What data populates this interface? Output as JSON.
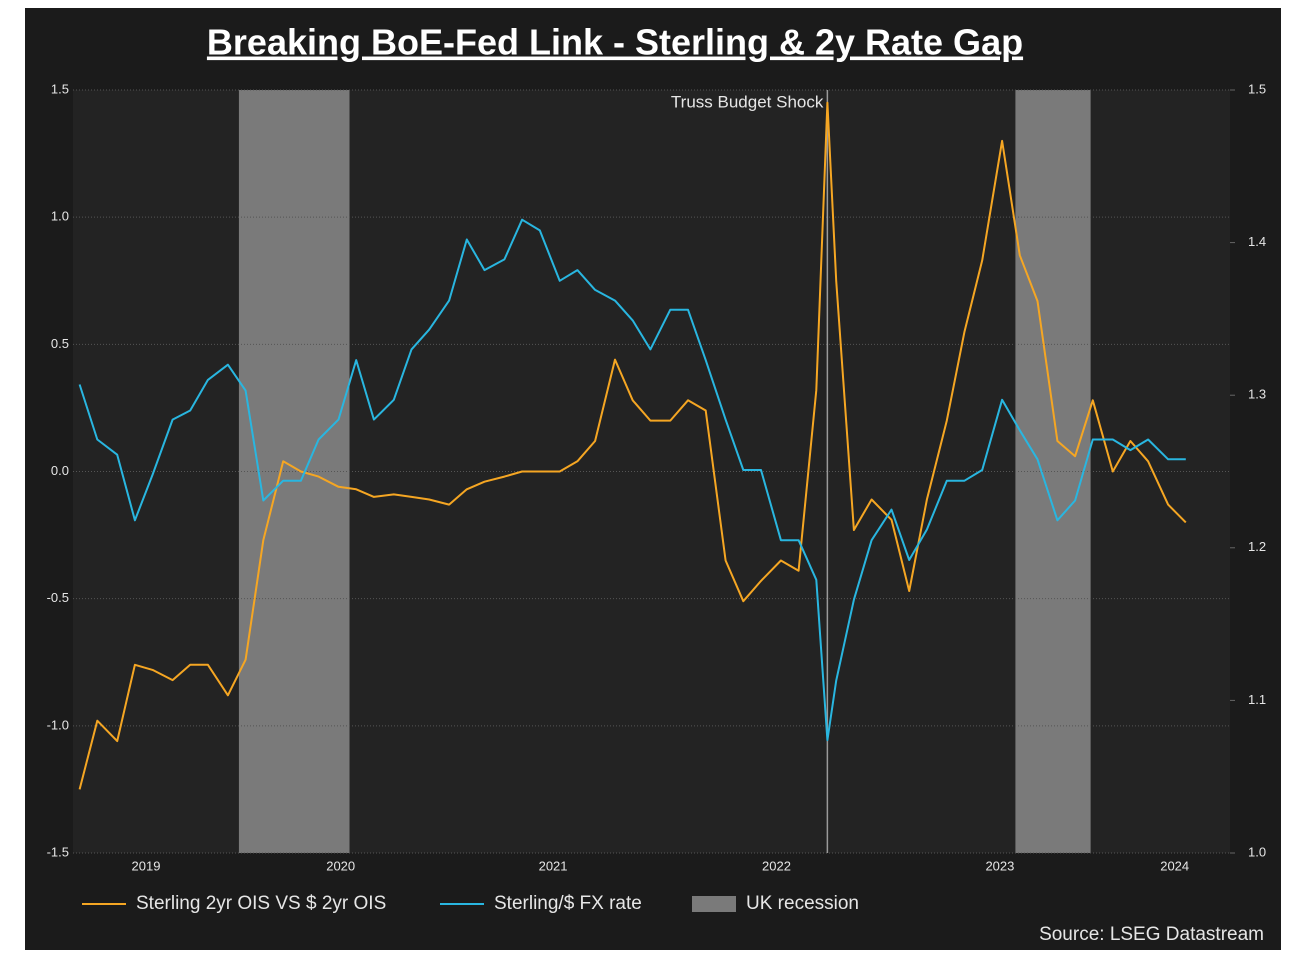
{
  "chart_data": {
    "type": "line",
    "title": "Breaking BoE-Fed Link - Sterling & 2y Rate Gap",
    "source": "Source: LSEG Datastream",
    "annotation": {
      "text": "Truss Budget Shock",
      "x": 2022.68
    },
    "xlim": [
      2019.27,
      2024.5
    ],
    "xticks": [
      {
        "value": 2019.6,
        "label": "2019"
      },
      {
        "value": 2020.48,
        "label": "2020"
      },
      {
        "value": 2021.44,
        "label": "2021"
      },
      {
        "value": 2022.45,
        "label": "2022"
      },
      {
        "value": 2023.46,
        "label": "2023"
      },
      {
        "value": 2024.25,
        "label": "2024"
      }
    ],
    "ylim": [
      -1.5,
      1.5
    ],
    "yticks": [
      {
        "value": -1.5,
        "label": "-1.5"
      },
      {
        "value": -1,
        "label": "-1.0"
      },
      {
        "value": -0.5,
        "label": "-0.5"
      },
      {
        "value": 0,
        "label": "0.0"
      },
      {
        "value": 0.5,
        "label": "0.5"
      },
      {
        "value": 1,
        "label": "1.0"
      },
      {
        "value": 1.5,
        "label": "1.5"
      }
    ],
    "y2lim": [
      1.0,
      1.5
    ],
    "y2ticks": [
      {
        "value": 1,
        "label": "1.0"
      },
      1.1,
      1.2,
      1.3,
      1.4,
      1.5
    ],
    "grid": true,
    "bands": {
      "name": "UK recession",
      "color": "#7a7a7a",
      "ranges": [
        [
          2020.02,
          2020.52
        ],
        [
          2023.53,
          2023.87
        ]
      ]
    },
    "x": [
      2019.3,
      2019.38,
      2019.47,
      2019.55,
      2019.63,
      2019.72,
      2019.8,
      2019.88,
      2019.97,
      2020.05,
      2020.13,
      2020.22,
      2020.3,
      2020.38,
      2020.47,
      2020.55,
      2020.63,
      2020.72,
      2020.8,
      2020.88,
      2020.97,
      2021.05,
      2021.13,
      2021.22,
      2021.3,
      2021.38,
      2021.47,
      2021.55,
      2021.63,
      2021.72,
      2021.8,
      2021.88,
      2021.97,
      2022.05,
      2022.13,
      2022.22,
      2022.3,
      2022.38,
      2022.47,
      2022.55,
      2022.63,
      2022.68,
      2022.72,
      2022.8,
      2022.88,
      2022.97,
      2023.05,
      2023.13,
      2023.22,
      2023.3,
      2023.38,
      2023.47,
      2023.55,
      2023.63,
      2023.72,
      2023.8,
      2023.88,
      2023.97,
      2024.05,
      2024.13,
      2024.22,
      2024.3
    ],
    "series": [
      {
        "name": "Sterling 2yr OIS VS $ 2yr OIS",
        "color": "#f5a623",
        "values": [
          -1.25,
          -0.98,
          -1.06,
          -0.76,
          -0.78,
          -0.82,
          -0.76,
          -0.76,
          -0.88,
          -0.74,
          -0.27,
          0.04,
          0.0,
          -0.02,
          -0.06,
          -0.07,
          -0.1,
          -0.09,
          -0.1,
          -0.11,
          -0.13,
          -0.07,
          -0.04,
          -0.02,
          0.0,
          0.0,
          0.0,
          0.04,
          0.12,
          0.44,
          0.28,
          0.2,
          0.2,
          0.28,
          0.24,
          -0.35,
          -0.51,
          -0.43,
          -0.35,
          -0.39,
          0.32,
          1.45,
          0.75,
          -0.23,
          -0.11,
          -0.19,
          -0.47,
          -0.11,
          0.2,
          0.55,
          0.83,
          1.3,
          0.85,
          0.67,
          0.12,
          0.06,
          0.28,
          0.0,
          0.12,
          0.04,
          -0.13,
          -0.2
        ]
      },
      {
        "name": "Sterling/$ FX rate",
        "color": "#29b6e0",
        "axis": "y2",
        "values": [
          1.307,
          1.271,
          1.261,
          1.218,
          1.248,
          1.284,
          1.29,
          1.31,
          1.32,
          1.303,
          1.231,
          1.244,
          1.244,
          1.271,
          1.284,
          1.323,
          1.284,
          1.297,
          1.33,
          1.343,
          1.362,
          1.402,
          1.382,
          1.389,
          1.415,
          1.408,
          1.375,
          1.382,
          1.369,
          1.362,
          1.349,
          1.33,
          1.356,
          1.356,
          1.323,
          1.284,
          1.251,
          1.251,
          1.205,
          1.205,
          1.179,
          1.074,
          1.113,
          1.166,
          1.205,
          1.225,
          1.192,
          1.212,
          1.244,
          1.244,
          1.251,
          1.297,
          1.277,
          1.258,
          1.218,
          1.231,
          1.271,
          1.271,
          1.264,
          1.271,
          1.258,
          1.258
        ]
      }
    ]
  }
}
